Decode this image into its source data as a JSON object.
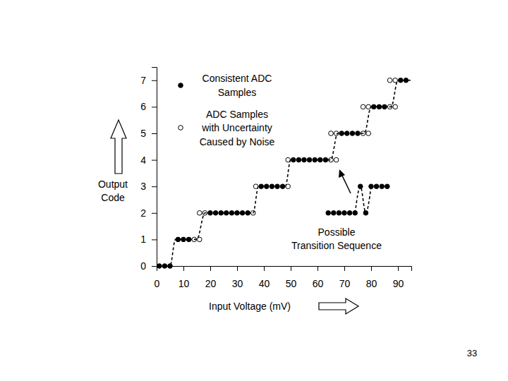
{
  "chart_data": {
    "type": "scatter",
    "x_label": "Input Voltage (mV)",
    "y_label": "Output Code",
    "xlim": [
      0,
      95
    ],
    "ylim": [
      0,
      7.5
    ],
    "xticks": [
      0,
      10,
      20,
      30,
      40,
      50,
      60,
      70,
      80,
      90
    ],
    "yticks": [
      0,
      1,
      2,
      3,
      4,
      5,
      6,
      7
    ],
    "legend": "upper left",
    "annotations": [
      "Possible Transition Sequence",
      "33"
    ],
    "series": [
      {
        "name": "Consistent ADC Samples",
        "type": "scatter",
        "marker": "filled",
        "color": "#000000",
        "x": [
          1,
          3,
          5,
          8,
          10,
          12,
          20,
          22,
          24,
          26,
          28,
          30,
          32,
          34,
          39,
          41,
          43,
          45,
          47,
          51,
          53,
          55,
          57,
          59,
          61,
          63,
          69,
          71,
          73,
          75,
          81,
          83,
          85,
          91,
          93
        ],
        "values": [
          0,
          0,
          0,
          1,
          1,
          1,
          2,
          2,
          2,
          2,
          2,
          2,
          2,
          2,
          3,
          3,
          3,
          3,
          3,
          4,
          4,
          4,
          4,
          4,
          4,
          4,
          5,
          5,
          5,
          5,
          6,
          6,
          6,
          7,
          7
        ]
      },
      {
        "name": "ADC Samples with Uncertainty Caused by Noise",
        "type": "scatter",
        "marker": "open",
        "color": "#000000",
        "x": [
          14,
          16,
          16,
          18,
          36,
          37,
          49,
          49,
          65,
          67,
          65,
          67,
          77,
          79,
          77,
          79,
          87,
          89,
          87,
          89
        ],
        "values": [
          1,
          1,
          2,
          2,
          2,
          3,
          3,
          4,
          4,
          4,
          5,
          5,
          5,
          5,
          6,
          6,
          6,
          6,
          7,
          7
        ]
      },
      {
        "type": "line",
        "line_style": "dashed",
        "color": "#000000",
        "x": [
          0,
          5,
          7,
          15,
          18,
          36,
          38,
          48,
          50,
          65,
          67.5,
          77.5,
          80,
          87.5,
          90,
          95
        ],
        "values": [
          0,
          0,
          1,
          1,
          2,
          2,
          3,
          3,
          4,
          4,
          5,
          5,
          6,
          6,
          7,
          7
        ]
      },
      {
        "type": "scatter",
        "marker": "filled",
        "color": "#000000",
        "x": [
          64,
          66,
          68,
          70,
          72,
          74,
          76,
          78,
          80,
          82,
          84,
          86
        ],
        "values": [
          2,
          2,
          2,
          2,
          2,
          2,
          3,
          2,
          3,
          3,
          3,
          3
        ]
      },
      {
        "type": "line",
        "line_style": "dashed",
        "color": "#000000",
        "x": [
          74,
          76,
          78,
          80
        ],
        "values": [
          2,
          3,
          2,
          3
        ]
      }
    ]
  }
}
